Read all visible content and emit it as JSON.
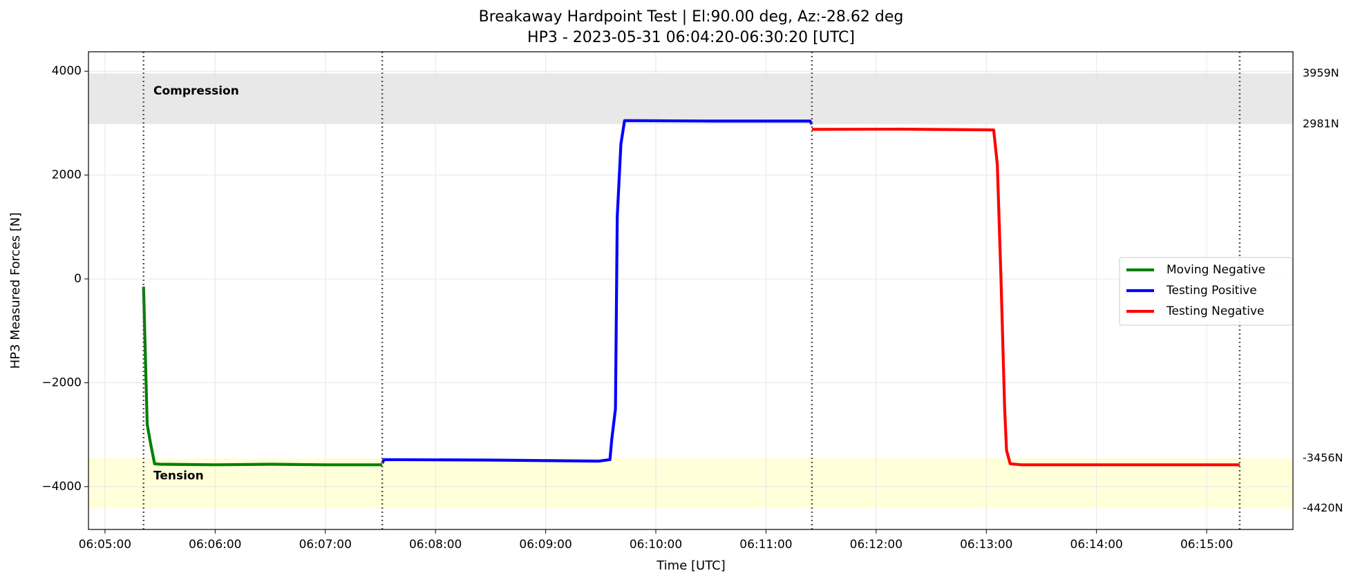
{
  "chart_data": {
    "type": "line",
    "title": "Breakaway Hardpoint Test | El:90.00 deg, Az:-28.62 deg",
    "subtitle": "HP3 - 2023-05-31 06:04:20-06:30:20 [UTC]",
    "x_label": "Time [UTC]",
    "y_label": "HP3 Measured Forces [N]",
    "xlim": [
      "06:04:51",
      "06:15:47"
    ],
    "xticks": [
      "06:05:00",
      "06:06:00",
      "06:07:00",
      "06:08:00",
      "06:09:00",
      "06:10:00",
      "06:11:00",
      "06:12:00",
      "06:13:00",
      "06:14:00",
      "06:15:00"
    ],
    "ylim": [
      -4826,
      4375
    ],
    "yticks": [
      {
        "value": -4000,
        "label": "−4000"
      },
      {
        "value": -2000,
        "label": "−2000"
      },
      0,
      2000,
      4000
    ],
    "grid": true,
    "legend": "right",
    "bands": [
      {
        "name": "Compression",
        "range": [
          2981,
          3959
        ],
        "labels": [
          "2981N",
          "3959N"
        ],
        "color": "#e8e8e8"
      },
      {
        "name": "Tension",
        "range": [
          -4420,
          -3456
        ],
        "labels": [
          "-4420N",
          "-3456N"
        ],
        "color": "#ffffd9"
      }
    ],
    "vlines": [
      "06:05:21",
      "06:07:31",
      "06:11:25",
      "06:15:18"
    ],
    "series": [
      {
        "name": "Moving Negative",
        "color": "#008000",
        "x": [
          "06:05:21",
          "06:05:22",
          "06:05:23",
          "06:05:25",
          "06:05:27",
          "06:05:30",
          "06:06:00",
          "06:06:30",
          "06:07:00",
          "06:07:31"
        ],
        "values": [
          -150,
          -1500,
          -2800,
          -3200,
          -3560,
          -3570,
          -3580,
          -3570,
          -3580,
          -3580
        ]
      },
      {
        "name": "Testing Positive",
        "color": "#0000ff",
        "x": [
          "06:07:31",
          "06:07:32",
          "06:08:30",
          "06:09:29",
          "06:09:35",
          "06:09:36",
          "06:09:38",
          "06:09:39",
          "06:09:41",
          "06:09:43",
          "06:10:30",
          "06:11:24",
          "06:11:25"
        ],
        "values": [
          -3550,
          -3480,
          -3490,
          -3510,
          -3480,
          -3100,
          -2500,
          1200,
          2600,
          3050,
          3040,
          3040,
          2980
        ]
      },
      {
        "name": "Testing Negative",
        "color": "#ff0000",
        "x": [
          "06:11:25",
          "06:12:15",
          "06:13:04",
          "06:13:06",
          "06:13:08",
          "06:13:10",
          "06:13:11",
          "06:13:13",
          "06:13:19",
          "06:14:15",
          "06:15:18"
        ],
        "values": [
          2880,
          2885,
          2870,
          2200,
          0,
          -2500,
          -3300,
          -3560,
          -3580,
          -3580,
          -3580
        ]
      }
    ]
  }
}
